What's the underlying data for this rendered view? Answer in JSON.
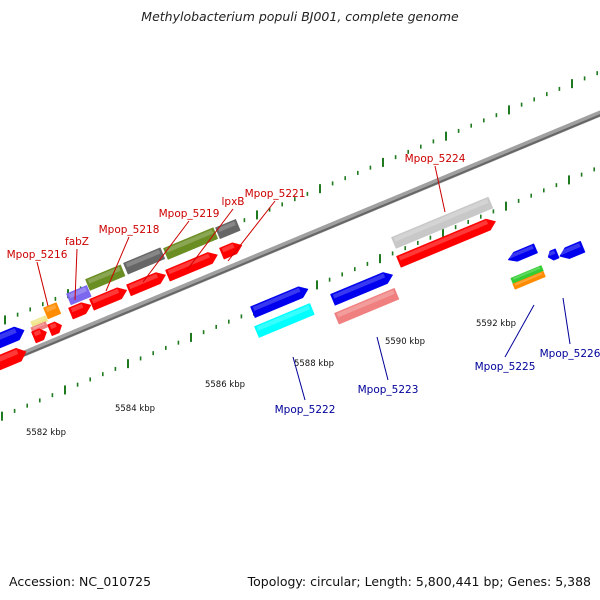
{
  "title": "Methylobacterium populi BJ001, complete genome",
  "footer": {
    "accession": "Accession: NC_010725",
    "summary": "Topology: circular; Length: 5,800,441 bp; Genes: 5,388"
  },
  "colors": {
    "top_label": "#cc0000",
    "bottom_label": "#000099",
    "backbone": "#808080",
    "tick": "#1f7a1f"
  },
  "scale_labels": [
    "5582 kbp",
    "5584 kbp",
    "5586 kbp",
    "5588 kbp",
    "5590 kbp",
    "5592 kbp"
  ],
  "gene_labels": [
    {
      "text": "Mpop_5216",
      "strand": "top"
    },
    {
      "text": "fabZ",
      "strand": "top"
    },
    {
      "text": "Mpop_5218",
      "strand": "top"
    },
    {
      "text": "Mpop_5219",
      "strand": "top"
    },
    {
      "text": "lpxB",
      "strand": "top"
    },
    {
      "text": "Mpop_5221",
      "strand": "top"
    },
    {
      "text": "Mpop_5224",
      "strand": "top"
    },
    {
      "text": "Mpop_5222",
      "strand": "bottom"
    },
    {
      "text": "Mpop_5223",
      "strand": "bottom"
    },
    {
      "text": "Mpop_5225",
      "strand": "bottom"
    },
    {
      "text": "Mpop_5226",
      "strand": "bottom"
    }
  ],
  "feature_colors": {
    "red": "#ff0000",
    "blue": "#0000ee",
    "grey": "#666666",
    "olive": "#6b8e23",
    "purple": "#7b68ee",
    "orange": "#ff8c00",
    "yellow": "#f0e68c",
    "salmon": "#f08080",
    "cyan": "#00ffff",
    "light_grey": "#c8c8c8",
    "green": "#32cd32"
  }
}
